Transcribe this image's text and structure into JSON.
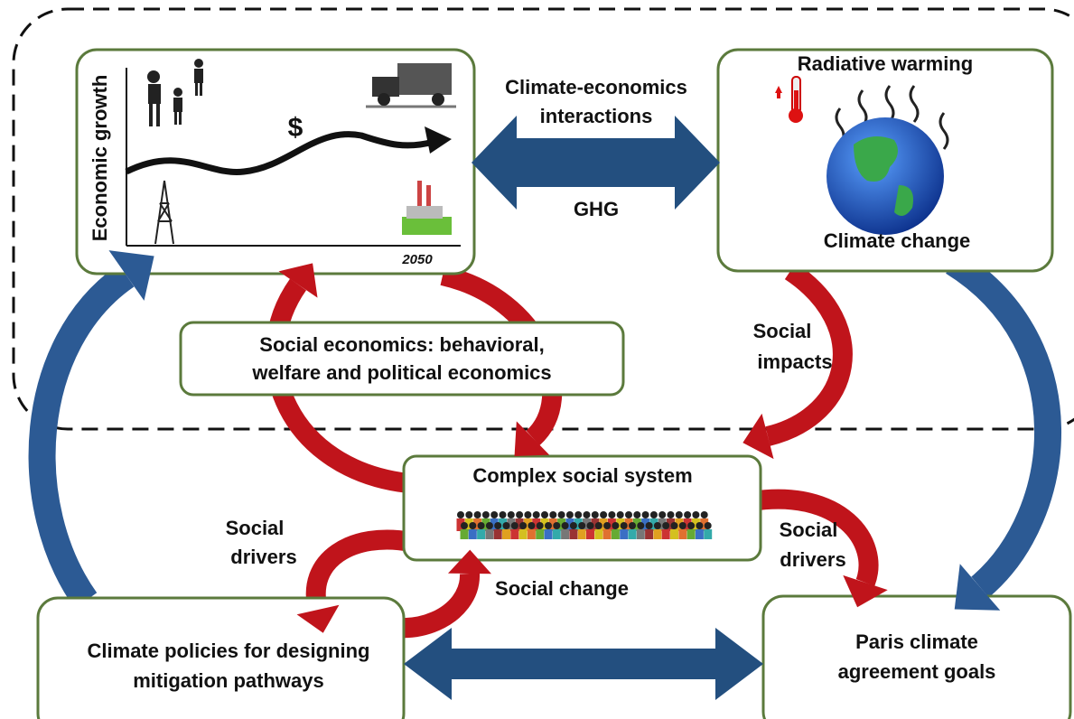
{
  "economy": {
    "y_axis_label": "Economic growth",
    "currency": "$",
    "year": "2050"
  },
  "interaction": {
    "label_lines": [
      "Climate-economics",
      "interactions"
    ],
    "gas": "GHG"
  },
  "climate": {
    "top_label": "Radiative warming",
    "bottom_label": "Climate change"
  },
  "social_economics": {
    "lines": [
      "Social economics: behavioral,",
      "welfare and political economics"
    ]
  },
  "social_impacts": {
    "lines": [
      "Social",
      "impacts"
    ]
  },
  "social_system": {
    "title": "Complex social system"
  },
  "left_drivers": {
    "lines": [
      "Social",
      "drivers"
    ]
  },
  "social_change": "Social change",
  "right_drivers": {
    "lines": [
      "Social",
      "drivers"
    ]
  },
  "policies": {
    "lines": [
      "Climate policies for designing",
      "mitigation pathways"
    ]
  },
  "paris": {
    "lines": [
      "Paris climate",
      "agreement goals"
    ]
  }
}
